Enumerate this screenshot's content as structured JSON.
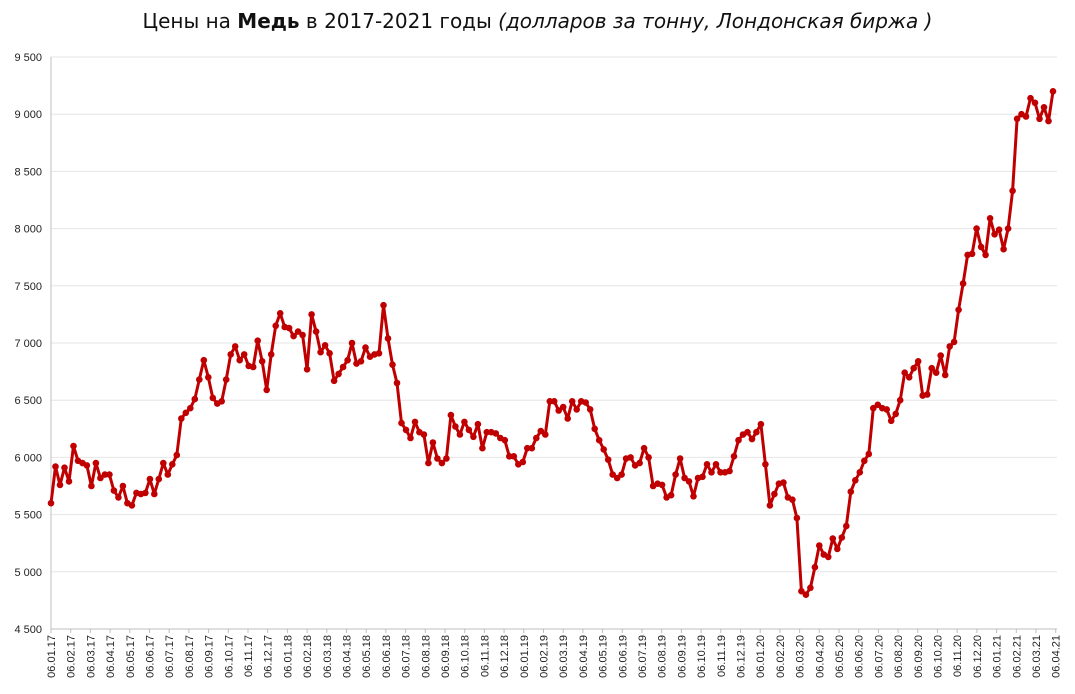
{
  "chart_data": {
    "type": "line",
    "title": {
      "prefix": "Цены на ",
      "bold": "Медь",
      "middle": " в 2017-2021 годы ",
      "italic": "(долларов за тонну, Лондонская биржа )"
    },
    "xlabel": "",
    "ylabel": "",
    "ylim": [
      4500,
      9500
    ],
    "yticks": [
      4500,
      5000,
      5500,
      6000,
      6500,
      7000,
      7500,
      8000,
      8500,
      9000,
      9500
    ],
    "ytick_labels": [
      "4 500",
      "5 000",
      "5 500",
      "6 000",
      "6 500",
      "7 000",
      "7 500",
      "8 000",
      "8 500",
      "9 000",
      "9 500"
    ],
    "x_tick_labels": [
      "06.01.17",
      "06.02.17",
      "06.03.17",
      "06.04.17",
      "06.05.17",
      "06.06.17",
      "06.07.17",
      "06.08.17",
      "06.09.17",
      "06.10.17",
      "06.11.17",
      "06.12.17",
      "06.01.18",
      "06.02.18",
      "06.03.18",
      "06.04.18",
      "06.05.18",
      "06.06.18",
      "06.07.18",
      "06.08.18",
      "06.09.18",
      "06.10.18",
      "06.11.18",
      "06.12.18",
      "06.01.19",
      "06.02.19",
      "06.03.19",
      "06.04.19",
      "06.05.19",
      "06.06.19",
      "06.07.19",
      "06.08.19",
      "06.09.19",
      "06.10.19",
      "06.11.19",
      "06.12.19",
      "06.01.20",
      "06.02.20",
      "06.03.20",
      "06.04.20",
      "06.05.20",
      "06.06.20",
      "06.07.20",
      "06.08.20",
      "06.09.20",
      "06.10.20",
      "06.11.20",
      "06.12.20",
      "06.01.21",
      "06.02.21",
      "06.03.21",
      "06.04.21"
    ],
    "grid": true,
    "colors": {
      "line": "#c00000",
      "grid": "#e6e6e6",
      "axis": "#bfbfbf"
    },
    "series": [
      {
        "values": [
          5600,
          5920,
          5760,
          5910,
          5790,
          6100,
          5970,
          5950,
          5930,
          5750,
          5950,
          5820,
          5850,
          5850,
          5710,
          5650,
          5750,
          5600,
          5580,
          5690,
          5680,
          5690,
          5810,
          5680,
          5810,
          5950,
          5850,
          5940,
          6020,
          6340,
          6390,
          6430,
          6510,
          6680,
          6850,
          6700,
          6520,
          6470,
          6490,
          6680,
          6900,
          6970,
          6850,
          6900,
          6800,
          6790,
          7020,
          6840,
          6590,
          6900,
          7150,
          7260,
          7140,
          7130,
          7060,
          7100,
          7070,
          6770,
          7250,
          7100,
          6920,
          6980,
          6910,
          6670,
          6730,
          6790,
          6850,
          7000,
          6820,
          6840,
          6960,
          6880,
          6900,
          6910,
          7330,
          7040,
          6810,
          6650,
          6300,
          6240,
          6170,
          6310,
          6220,
          6200,
          5950,
          6130,
          5990,
          5950,
          5990,
          6370,
          6270,
          6200,
          6310,
          6240,
          6180,
          6290,
          6080,
          6220,
          6220,
          6210,
          6170,
          6150,
          6010,
          6010,
          5940,
          5960,
          6080,
          6080,
          6170,
          6230,
          6200,
          6490,
          6490,
          6410,
          6440,
          6340,
          6490,
          6420,
          6490,
          6480,
          6420,
          6250,
          6150,
          6070,
          5980,
          5850,
          5820,
          5850,
          5990,
          6000,
          5930,
          5950,
          6080,
          6000,
          5750,
          5770,
          5760,
          5650,
          5670,
          5850,
          5990,
          5820,
          5790,
          5660,
          5820,
          5830,
          5940,
          5870,
          5940,
          5870,
          5870,
          5880,
          6010,
          6150,
          6200,
          6220,
          6160,
          6220,
          6290,
          5940,
          5580,
          5680,
          5770,
          5780,
          5650,
          5630,
          5470,
          4830,
          4800,
          4860,
          5040,
          5230,
          5150,
          5130,
          5290,
          5200,
          5300,
          5400,
          5700,
          5800,
          5870,
          5970,
          6030,
          6430,
          6460,
          6430,
          6420,
          6320,
          6380,
          6500,
          6740,
          6700,
          6780,
          6840,
          6540,
          6550,
          6780,
          6740,
          6890,
          6720,
          6970,
          7010,
          7290,
          7520,
          7770,
          7780,
          8000,
          7840,
          7770,
          8090,
          7950,
          7990,
          7820,
          8000,
          8330,
          8960,
          9000,
          8980,
          9140,
          9100,
          8960,
          9060,
          8940,
          9200
        ]
      }
    ]
  }
}
